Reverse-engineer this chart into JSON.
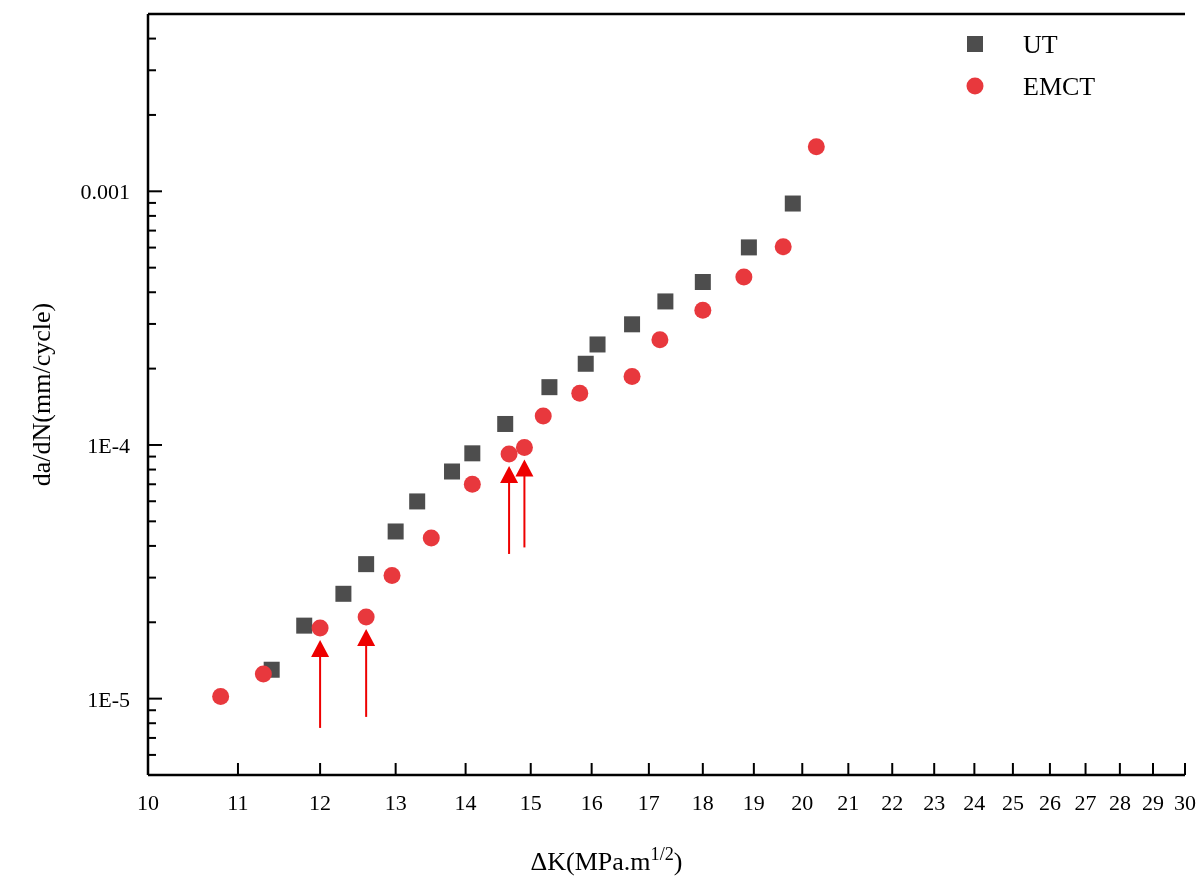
{
  "chart_data": {
    "type": "scatter",
    "xlabel": "ΔK(MPa.m$^{1/2}$)",
    "ylabel": "da/dN(mm/cycle)",
    "log": "xy",
    "legend": "top right",
    "grid": false,
    "xlim": [
      10,
      30
    ],
    "xticks": [
      10,
      11,
      12,
      13,
      14,
      15,
      16,
      17,
      18,
      19,
      20,
      21,
      22,
      23,
      24,
      25,
      26,
      27,
      28,
      29,
      30
    ],
    "ylim": [
      5e-06,
      0.005
    ],
    "yticks": [
      {
        "value": 6e-06,
        "label": null
      },
      {
        "value": 7e-06,
        "label": null
      },
      {
        "value": 8e-06,
        "label": null
      },
      {
        "value": 9e-06,
        "label": null
      },
      {
        "value": 1e-05,
        "label": "1E-5"
      },
      {
        "value": 2e-05,
        "label": null
      },
      {
        "value": 3e-05,
        "label": null
      },
      {
        "value": 4e-05,
        "label": null
      },
      {
        "value": 5e-05,
        "label": null
      },
      {
        "value": 6e-05,
        "label": null
      },
      {
        "value": 7e-05,
        "label": null
      },
      {
        "value": 8e-05,
        "label": null
      },
      {
        "value": 9e-05,
        "label": null
      },
      {
        "value": 0.0001,
        "label": "1E-4"
      },
      {
        "value": 0.0002,
        "label": null
      },
      {
        "value": 0.0003,
        "label": null
      },
      {
        "value": 0.0004,
        "label": null
      },
      {
        "value": 0.0005,
        "label": null
      },
      {
        "value": 0.0006,
        "label": null
      },
      {
        "value": 0.0007,
        "label": null
      },
      {
        "value": 0.0008,
        "label": null
      },
      {
        "value": 0.0009,
        "label": null
      },
      {
        "value": 0.001,
        "label": "0.001"
      },
      {
        "value": 0.002,
        "label": null
      },
      {
        "value": 0.003,
        "label": null
      },
      {
        "value": 0.004,
        "label": null
      }
    ],
    "series": [
      {
        "name": "UT",
        "color": "#4d4d4d",
        "marker": "square",
        "x": [
          11.4,
          11.8,
          12.3,
          12.6,
          13.0,
          13.3,
          13.8,
          14.1,
          14.6,
          15.3,
          15.9,
          16.1,
          16.7,
          17.3,
          18.0,
          18.9,
          19.8
        ],
        "values": [
          1.3e-05,
          1.94e-05,
          2.59e-05,
          3.39e-05,
          4.56e-05,
          5.99e-05,
          7.86e-05,
          9.27e-05,
          0.000121,
          0.000169,
          0.000209,
          0.000249,
          0.000299,
          0.000368,
          0.000439,
          0.000601,
          0.000895
        ]
      },
      {
        "name": "EMCT",
        "color": "#e8383d",
        "marker": "circle",
        "x": [
          10.8,
          11.3,
          12.0,
          12.6,
          12.95,
          13.5,
          14.1,
          14.66,
          14.9,
          15.2,
          15.8,
          16.7,
          17.2,
          18.0,
          18.8,
          19.6,
          20.3
        ],
        "values": [
          1.02e-05,
          1.25e-05,
          1.9e-05,
          2.1e-05,
          3.06e-05,
          4.3e-05,
          7e-05,
          9.22e-05,
          9.78e-05,
          0.00013,
          0.00016,
          0.000186,
          0.00026,
          0.00034,
          0.000459,
          0.000604,
          0.0015
        ]
      }
    ]
  }
}
